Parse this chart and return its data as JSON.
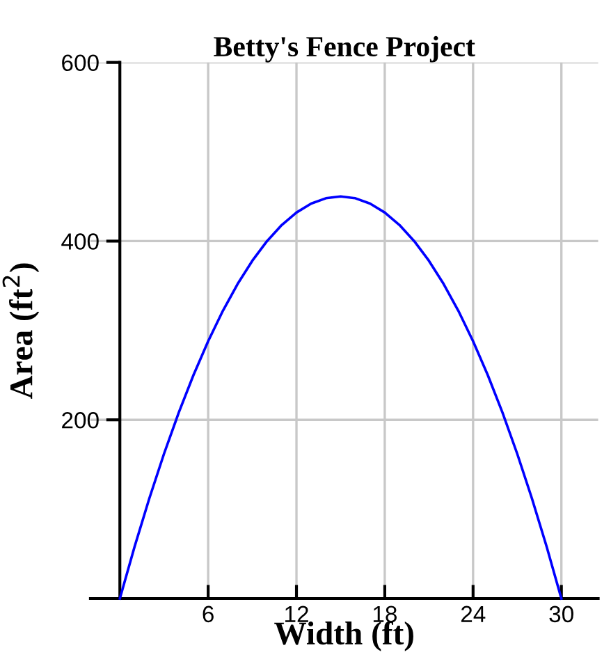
{
  "chart_data": {
    "type": "line",
    "title": "Betty's Fence Project",
    "xlabel": "Width (ft)",
    "ylabel": "Area (ft$^{2}$)",
    "x": [
      0,
      1,
      2,
      3,
      4,
      5,
      6,
      7,
      8,
      9,
      10,
      11,
      12,
      13,
      14,
      15,
      16,
      17,
      18,
      19,
      20,
      21,
      22,
      23,
      24,
      25,
      26,
      27,
      28,
      29,
      30
    ],
    "series": [
      {
        "color": "#0000ff",
        "values": [
          0,
          58,
          112,
          162,
          208,
          250,
          288,
          322,
          352,
          378,
          400,
          418,
          432,
          442,
          448,
          450,
          448,
          442,
          432,
          418,
          400,
          378,
          352,
          322,
          288,
          250,
          208,
          162,
          112,
          58,
          0
        ]
      }
    ],
    "xlim": [
      -2,
      32.5
    ],
    "ylim": [
      0,
      600
    ],
    "xticks": [
      6,
      12,
      18,
      24,
      30
    ],
    "yticks": [
      200,
      400,
      600
    ],
    "grid": true,
    "marker": "none",
    "line_style": "solid",
    "legend": false
  }
}
